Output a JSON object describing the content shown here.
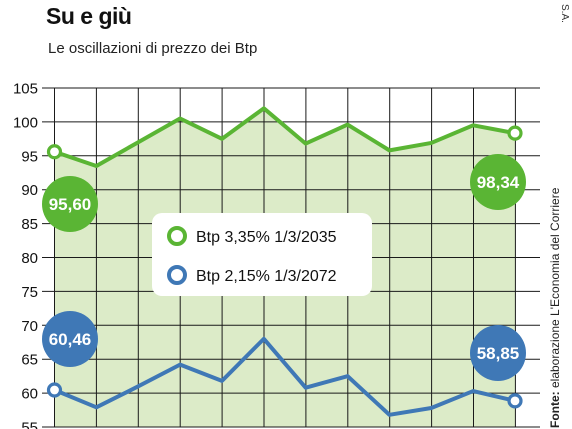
{
  "header": {
    "title": "Su e giù",
    "subtitle": "Le oscillazioni di prezzo dei Btp",
    "credit": "S.A.",
    "source_label": "Fonte:",
    "source_text": "elaborazione L'Economia del Corriere"
  },
  "colors": {
    "green": "#5ab534",
    "blue": "#3f78b6",
    "area_fill": "#dcebc8",
    "grid": "#1a1a1a"
  },
  "chart_data": {
    "type": "line",
    "x": [
      1,
      2,
      3,
      4,
      5,
      6,
      7,
      8,
      9,
      10,
      11,
      12
    ],
    "ylim": [
      55,
      105
    ],
    "yticks": [
      55,
      60,
      65,
      70,
      75,
      80,
      85,
      90,
      95,
      100,
      105
    ],
    "ytick_labels": [
      "55",
      "60",
      "65",
      "70",
      "75",
      "80",
      "85",
      "90",
      "95",
      "100",
      "105"
    ],
    "grid": true,
    "legend_position": "center",
    "series": [
      {
        "name": "Btp 3,35% 1/3/2035",
        "color": "#5ab534",
        "values": [
          95.6,
          93.5,
          97.0,
          100.5,
          97.5,
          102.0,
          96.8,
          99.6,
          95.8,
          96.9,
          99.5,
          98.34
        ],
        "start_label": "95,60",
        "end_label": "98,34"
      },
      {
        "name": "Btp 2,15% 1/3/2072",
        "color": "#3f78b6",
        "values": [
          60.46,
          57.9,
          61.0,
          64.2,
          61.8,
          68.0,
          60.8,
          62.5,
          56.8,
          57.8,
          60.3,
          58.85
        ],
        "start_label": "60,46",
        "end_label": "58,85"
      }
    ]
  }
}
